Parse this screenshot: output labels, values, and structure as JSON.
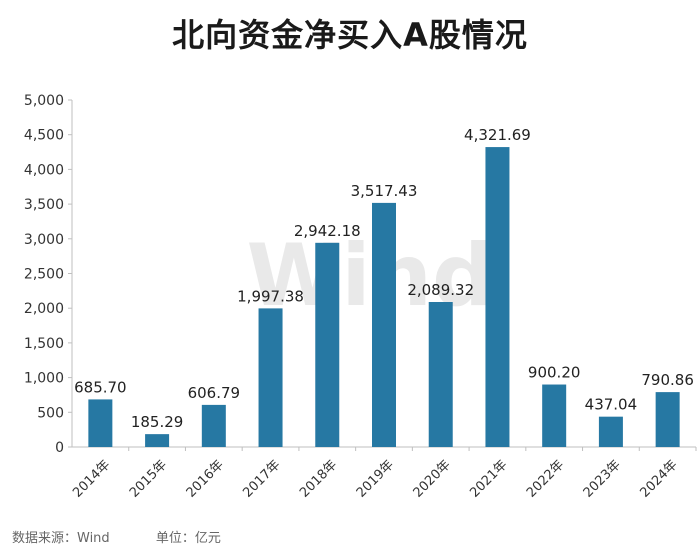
{
  "title": "北向资金净买入A股情况",
  "footer": {
    "source": "数据来源：Wind",
    "unit": "单位：亿元"
  },
  "watermark": "Wind",
  "colors": {
    "bar": "#2678a3",
    "axis": "#bfbfbf",
    "text": "#333333",
    "watermark": "#e9e9e9"
  },
  "chart_data": {
    "type": "bar",
    "categories": [
      "2014年",
      "2015年",
      "2016年",
      "2017年",
      "2018年",
      "2019年",
      "2020年",
      "2021年",
      "2022年",
      "2023年",
      "2024年"
    ],
    "values": [
      685.7,
      185.29,
      606.79,
      1997.38,
      2942.18,
      3517.43,
      2089.32,
      4321.69,
      900.2,
      437.04,
      790.86
    ],
    "data_labels": [
      "685.70",
      "185.29",
      "606.79",
      "1,997.38",
      "2,942.18",
      "3,517.43",
      "2,089.32",
      "4,321.69",
      "900.20",
      "437.04",
      "790.86"
    ],
    "title": "北向资金净买入A股情况",
    "ylim": [
      0,
      5000
    ],
    "yticks": [
      "0",
      "500",
      "1,000",
      "1,500",
      "2,000",
      "2,500",
      "3,000",
      "3,500",
      "4,000",
      "4,500",
      "5,000"
    ],
    "grid": false,
    "legend": "none"
  }
}
